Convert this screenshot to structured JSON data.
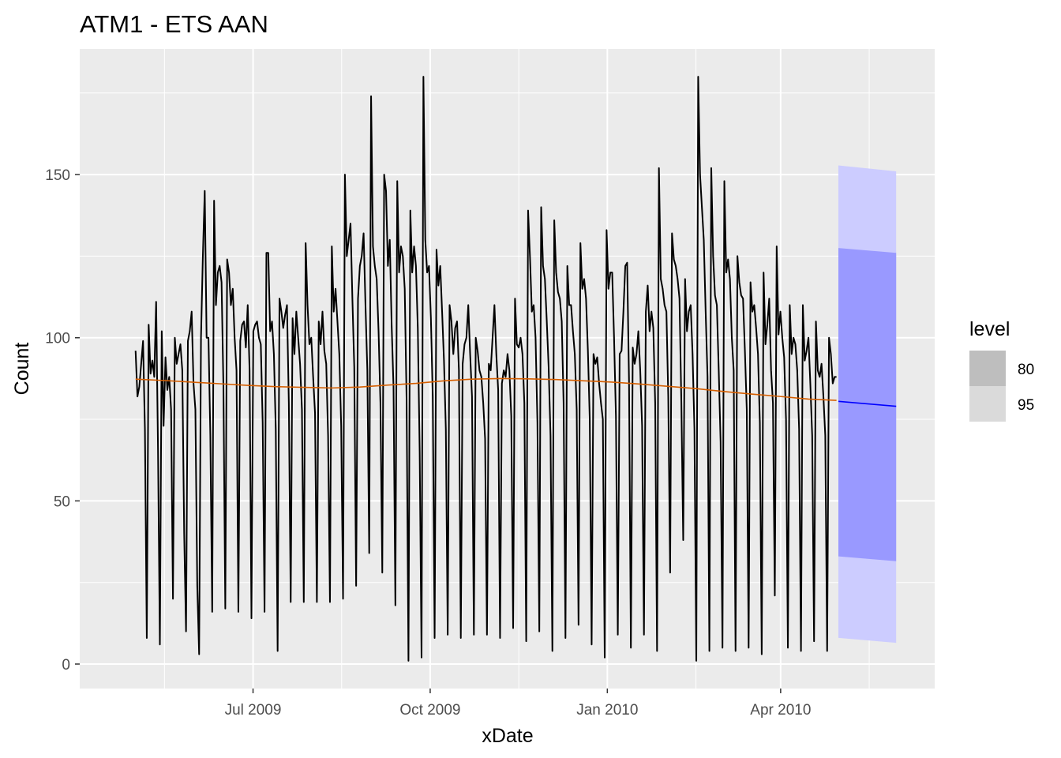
{
  "chart_data": {
    "type": "line",
    "title": "ATM1 - ETS AAN",
    "xlabel": "xDate",
    "ylabel": "Count",
    "x_ticks": [
      "Jul 2009",
      "Oct 2009",
      "Jan 2010",
      "Apr 2010"
    ],
    "y_ticks": [
      0,
      50,
      100,
      150
    ],
    "ylim": [
      -7.5,
      188.5
    ],
    "xlim": [
      "2009-04-02",
      "2010-06-20"
    ],
    "grid": true,
    "background": "#ebebeb",
    "legend": {
      "title": "level",
      "position": "right",
      "entries": [
        {
          "label": "80",
          "color": "#bebebe"
        },
        {
          "label": "95",
          "color": "#dadada"
        }
      ]
    },
    "observed": {
      "name": "observed",
      "color": "#000000",
      "start": "2009-05-01",
      "end": "2010-04-30",
      "values": [
        96,
        82,
        85,
        92,
        99,
        72,
        8,
        104,
        89,
        93,
        88,
        111,
        66,
        6,
        102,
        73,
        94,
        84,
        88,
        78,
        20,
        100,
        92,
        95,
        98,
        90,
        40,
        10,
        99,
        102,
        108,
        86,
        78,
        24,
        3,
        100,
        125,
        145,
        100,
        100,
        70,
        16,
        142,
        110,
        120,
        122,
        117,
        85,
        17,
        124,
        120,
        110,
        115,
        100,
        90,
        16,
        99,
        104,
        105,
        97,
        110,
        90,
        14,
        102,
        104,
        105,
        100,
        98,
        74,
        16,
        126,
        126,
        102,
        105,
        95,
        72,
        4,
        112,
        108,
        103,
        107,
        110,
        80,
        19,
        106,
        95,
        108,
        100,
        92,
        78,
        19,
        129,
        110,
        98,
        100,
        88,
        77,
        19,
        105,
        98,
        108,
        96,
        92,
        70,
        19,
        128,
        108,
        115,
        105,
        95,
        73,
        20,
        150,
        125,
        130,
        135,
        112,
        91,
        24,
        112,
        122,
        125,
        132,
        110,
        90,
        34,
        174,
        128,
        122,
        118,
        102,
        80,
        28,
        150,
        145,
        122,
        130,
        104,
        85,
        18,
        148,
        120,
        128,
        125,
        115,
        81,
        1,
        139,
        120,
        128,
        122,
        103,
        65,
        2,
        180,
        130,
        120,
        122,
        106,
        82,
        8,
        127,
        116,
        122,
        108,
        93,
        72,
        9,
        110,
        105,
        95,
        103,
        105,
        90,
        8,
        92,
        98,
        100,
        110,
        95,
        82,
        9,
        100,
        96,
        90,
        88,
        80,
        69,
        9,
        92,
        90,
        100,
        110,
        95,
        84,
        8,
        86,
        90,
        88,
        95,
        90,
        76,
        11,
        112,
        98,
        97,
        100,
        95,
        80,
        7,
        139,
        125,
        108,
        110,
        100,
        74,
        10,
        140,
        122,
        118,
        105,
        91,
        70,
        4,
        136,
        120,
        114,
        112,
        105,
        80,
        8,
        122,
        110,
        110,
        102,
        95,
        78,
        12,
        129,
        115,
        118,
        112,
        96,
        75,
        6,
        95,
        92,
        94,
        86,
        80,
        75,
        2,
        133,
        115,
        120,
        120,
        100,
        76,
        9,
        95,
        96,
        108,
        122,
        123,
        87,
        5,
        97,
        92,
        95,
        102,
        90,
        73,
        9,
        108,
        116,
        102,
        108,
        103,
        80,
        4,
        152,
        118,
        115,
        110,
        108,
        82,
        28,
        132,
        124,
        122,
        118,
        112,
        80,
        38,
        118,
        102,
        108,
        110,
        95,
        72,
        1,
        180,
        150,
        140,
        130,
        108,
        88,
        4,
        152,
        125,
        113,
        110,
        90,
        68,
        5,
        148,
        120,
        124,
        118,
        100,
        90,
        4,
        125,
        117,
        113,
        112,
        96,
        78,
        5,
        117,
        108,
        110,
        103,
        95,
        74,
        3,
        120,
        98,
        104,
        112,
        90,
        80,
        21,
        128,
        101,
        108,
        100,
        94,
        75,
        5,
        110,
        95,
        100,
        98,
        90,
        72,
        4,
        110,
        93,
        96,
        100,
        86,
        70,
        7,
        105,
        90,
        88,
        92,
        82,
        70,
        4,
        100,
        95,
        86,
        88,
        88
      ]
    },
    "fitted": {
      "name": "fitted",
      "color": "#d55e00",
      "start": "2009-05-01",
      "end": "2010-04-30",
      "values": [
        87.3,
        86.9,
        86.4,
        85.9,
        85.4,
        85.0,
        84.8,
        84.6,
        84.9,
        85.5,
        86.0,
        86.8,
        87.3,
        87.5,
        87.4,
        87.2,
        86.8,
        86.4,
        85.8,
        85.1,
        84.4,
        83.5,
        82.7,
        82.0,
        81.2,
        80.8
      ]
    },
    "forecast": {
      "name": "forecast",
      "color": "#0000ff",
      "start": "2010-05-01",
      "end": "2010-05-31",
      "mean": [
        80.5,
        79.0
      ],
      "lo80": [
        33.0,
        31.5
      ],
      "hi80": [
        127.5,
        126.0
      ],
      "lo95": [
        8.0,
        6.5
      ],
      "hi95": [
        152.8,
        151.0
      ],
      "color80": "#9999ff",
      "color95": "#ccccff"
    }
  }
}
